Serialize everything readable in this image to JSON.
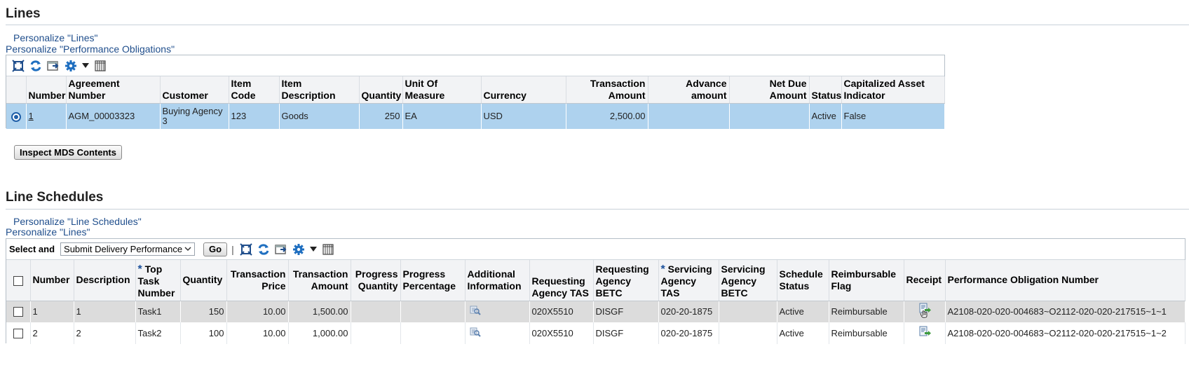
{
  "lines_section": {
    "title": "Lines",
    "personalize_links": [
      "Personalize \"Lines\"",
      "Personalize \"Performance Obligations\""
    ],
    "columns": [
      "Number",
      "Agreement Number",
      "Customer",
      "Item Code",
      "Item Description",
      "Quantity",
      "Unit Of Measure",
      "Currency",
      "Transaction Amount",
      "Advance amount",
      "Net Due Amount",
      "Status",
      "Capitalized Asset Indicator"
    ],
    "rows": [
      {
        "number": "1",
        "agreement_number": "AGM_00003323",
        "customer": "Buying Agency 3",
        "item_code": "123",
        "item_description": "Goods",
        "quantity": "250",
        "unit_of_measure": "EA",
        "currency": "USD",
        "transaction_amount": "2,500.00",
        "advance_amount": "",
        "net_due_amount": "",
        "status": "Active",
        "capitalized_asset_indicator": "False"
      }
    ],
    "inspect_button": "Inspect MDS Contents"
  },
  "schedules_section": {
    "title": "Line Schedules",
    "personalize_links": [
      "Personalize \"Line Schedules\"",
      "Personalize \"Lines\""
    ],
    "select_and_label": "Select and",
    "action_select_value": "Submit Delivery Performance",
    "go_label": "Go",
    "required_marker": "*",
    "columns": [
      "Number",
      "Description",
      "Top Task Number",
      "Quantity",
      "Transaction Price",
      "Transaction Amount",
      "Progress Quantity",
      "Progress Percentage",
      "Additional Information",
      "Requesting Agency TAS",
      "Requesting Agency BETC",
      "Servicing Agency TAS",
      "Servicing Agency BETC",
      "Schedule Status",
      "Reimbursable Flag",
      "Receipt",
      "Performance Obligation Number"
    ],
    "rows": [
      {
        "number": "1",
        "description": "1",
        "top_task_number": "Task1",
        "quantity": "150",
        "transaction_price": "10.00",
        "transaction_amount": "1,500.00",
        "progress_quantity": "",
        "progress_percentage": "",
        "requesting_agency_tas": "020X5510",
        "requesting_agency_betc": "DISGF",
        "servicing_agency_tas": "020-20-1875",
        "servicing_agency_betc": "",
        "schedule_status": "Active",
        "reimbursable_flag": "Reimbursable",
        "performance_obligation_number": "A2108-020-020-004683~O2112-020-020-217515~1~1"
      },
      {
        "number": "2",
        "description": "2",
        "top_task_number": "Task2",
        "quantity": "100",
        "transaction_price": "10.00",
        "transaction_amount": "1,000.00",
        "progress_quantity": "",
        "progress_percentage": "",
        "requesting_agency_tas": "020X5510",
        "requesting_agency_betc": "DISGF",
        "servicing_agency_tas": "020-20-1875",
        "servicing_agency_betc": "",
        "schedule_status": "Active",
        "reimbursable_flag": "Reimbursable",
        "performance_obligation_number": "A2108-020-020-004683~O2112-020-020-217515~1~2"
      }
    ]
  },
  "toolbar_icons": [
    "detach-icon",
    "refresh-icon",
    "export-icon",
    "settings-gear-icon",
    "dropdown-arrow-icon",
    "column-freeze-icon"
  ],
  "colors": {
    "link": "#1f4e8c",
    "selected_row": "#aed2ee",
    "hover_row": "#dcdcdc",
    "header_bg": "#f2f3f5",
    "icon_blue": "#1f6fc0"
  }
}
